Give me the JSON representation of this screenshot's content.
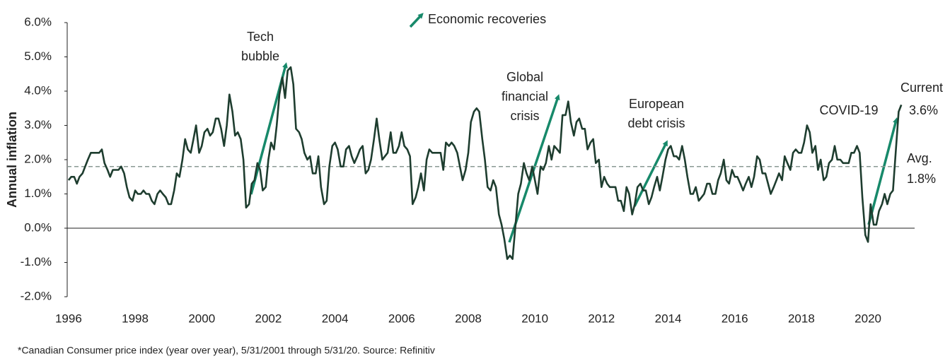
{
  "chart_data": {
    "type": "line",
    "y_label": "Annual inflation",
    "legend_label": "Economic recoveries",
    "footnote": "*Canadian Consumer price index (year over year), 5/31/2001 through 5/31/20. Source: Refinitiv",
    "color": "#1e3d2f",
    "arrow_color": "#17896a",
    "x": [
      1996.0,
      1996.08,
      1996.17,
      1996.25,
      1996.33,
      1996.42,
      1996.5,
      1996.58,
      1996.67,
      1996.75,
      1996.83,
      1996.92,
      1997.0,
      1997.08,
      1997.17,
      1997.25,
      1997.33,
      1997.42,
      1997.5,
      1997.58,
      1997.67,
      1997.75,
      1997.83,
      1997.92,
      1998.0,
      1998.08,
      1998.17,
      1998.25,
      1998.33,
      1998.42,
      1998.5,
      1998.58,
      1998.67,
      1998.75,
      1998.83,
      1998.92,
      1999.0,
      1999.08,
      1999.17,
      1999.25,
      1999.33,
      1999.42,
      1999.5,
      1999.58,
      1999.67,
      1999.75,
      1999.83,
      1999.92,
      2000.0,
      2000.08,
      2000.17,
      2000.25,
      2000.33,
      2000.42,
      2000.5,
      2000.58,
      2000.67,
      2000.75,
      2000.83,
      2000.92,
      2001.0,
      2001.08,
      2001.17,
      2001.25,
      2001.33,
      2001.42,
      2001.5,
      2001.58,
      2001.67,
      2001.75,
      2001.83,
      2001.92,
      2002.0,
      2002.08,
      2002.17,
      2002.25,
      2002.33,
      2002.42,
      2002.5,
      2002.58,
      2002.67,
      2002.75,
      2002.83,
      2002.92,
      2003.0,
      2003.08,
      2003.17,
      2003.25,
      2003.33,
      2003.42,
      2003.5,
      2003.58,
      2003.67,
      2003.75,
      2003.83,
      2003.92,
      2004.0,
      2004.08,
      2004.17,
      2004.25,
      2004.33,
      2004.42,
      2004.5,
      2004.58,
      2004.67,
      2004.75,
      2004.83,
      2004.92,
      2005.0,
      2005.08,
      2005.17,
      2005.25,
      2005.33,
      2005.42,
      2005.5,
      2005.58,
      2005.67,
      2005.75,
      2005.83,
      2005.92,
      2006.0,
      2006.08,
      2006.17,
      2006.25,
      2006.33,
      2006.42,
      2006.5,
      2006.58,
      2006.67,
      2006.75,
      2006.83,
      2006.92,
      2007.0,
      2007.08,
      2007.17,
      2007.25,
      2007.33,
      2007.42,
      2007.5,
      2007.58,
      2007.67,
      2007.75,
      2007.83,
      2007.92,
      2008.0,
      2008.08,
      2008.17,
      2008.25,
      2008.33,
      2008.42,
      2008.5,
      2008.58,
      2008.67,
      2008.75,
      2008.83,
      2008.92,
      2009.0,
      2009.08,
      2009.17,
      2009.25,
      2009.33,
      2009.42,
      2009.5,
      2009.58,
      2009.67,
      2009.75,
      2009.83,
      2009.92,
      2010.0,
      2010.08,
      2010.17,
      2010.25,
      2010.33,
      2010.42,
      2010.5,
      2010.58,
      2010.67,
      2010.75,
      2010.83,
      2010.92,
      2011.0,
      2011.08,
      2011.17,
      2011.25,
      2011.33,
      2011.42,
      2011.5,
      2011.58,
      2011.67,
      2011.75,
      2011.83,
      2011.92,
      2012.0,
      2012.08,
      2012.17,
      2012.25,
      2012.33,
      2012.42,
      2012.5,
      2012.58,
      2012.67,
      2012.75,
      2012.83,
      2012.92,
      2013.0,
      2013.08,
      2013.17,
      2013.25,
      2013.33,
      2013.42,
      2013.5,
      2013.58,
      2013.67,
      2013.75,
      2013.83,
      2013.92,
      2014.0,
      2014.08,
      2014.17,
      2014.25,
      2014.33,
      2014.42,
      2014.5,
      2014.58,
      2014.67,
      2014.75,
      2014.83,
      2014.92,
      2015.0,
      2015.08,
      2015.17,
      2015.25,
      2015.33,
      2015.42,
      2015.5,
      2015.58,
      2015.67,
      2015.75,
      2015.83,
      2015.92,
      2016.0,
      2016.08,
      2016.17,
      2016.25,
      2016.33,
      2016.42,
      2016.5,
      2016.58,
      2016.67,
      2016.75,
      2016.83,
      2016.92,
      2017.0,
      2017.08,
      2017.17,
      2017.25,
      2017.33,
      2017.42,
      2017.5,
      2017.58,
      2017.67,
      2017.75,
      2017.83,
      2017.92,
      2018.0,
      2018.08,
      2018.17,
      2018.25,
      2018.33,
      2018.42,
      2018.5,
      2018.58,
      2018.67,
      2018.75,
      2018.83,
      2018.92,
      2019.0,
      2019.08,
      2019.17,
      2019.25,
      2019.33,
      2019.42,
      2019.5,
      2019.58,
      2019.67,
      2019.75,
      2019.83,
      2019.92,
      2020.0,
      2020.08,
      2020.17,
      2020.25,
      2020.33,
      2020.42,
      2020.5,
      2020.58,
      2020.67,
      2020.75,
      2020.83,
      2020.92,
      2021.0
    ],
    "values": [
      1.4,
      1.5,
      1.5,
      1.3,
      1.5,
      1.6,
      1.8,
      2.0,
      2.2,
      2.2,
      2.2,
      2.2,
      2.3,
      1.9,
      1.7,
      1.5,
      1.7,
      1.7,
      1.7,
      1.8,
      1.6,
      1.2,
      0.9,
      0.8,
      1.1,
      1.0,
      1.0,
      1.1,
      1.0,
      1.0,
      0.8,
      0.7,
      1.0,
      1.1,
      1.0,
      0.9,
      0.7,
      0.7,
      1.1,
      1.6,
      1.5,
      2.0,
      2.6,
      2.3,
      2.2,
      2.6,
      3.0,
      2.2,
      2.4,
      2.8,
      2.9,
      2.7,
      2.8,
      3.2,
      3.2,
      2.9,
      2.4,
      3.0,
      3.9,
      3.4,
      2.7,
      2.8,
      2.6,
      2.0,
      0.6,
      0.7,
      1.3,
      1.4,
      1.9,
      1.7,
      1.1,
      1.2,
      2.0,
      2.5,
      2.3,
      3.0,
      3.9,
      4.4,
      3.8,
      4.6,
      4.7,
      4.2,
      2.9,
      2.8,
      2.6,
      2.2,
      2.0,
      2.1,
      1.6,
      1.6,
      2.1,
      1.2,
      0.7,
      0.8,
      1.8,
      2.4,
      2.5,
      2.3,
      1.8,
      1.8,
      2.3,
      2.4,
      2.1,
      1.9,
      2.1,
      2.3,
      2.4,
      1.6,
      1.7,
      2.0,
      2.6,
      3.2,
      2.6,
      2.0,
      2.1,
      2.2,
      2.8,
      2.2,
      2.2,
      2.4,
      2.8,
      2.4,
      2.3,
      2.1,
      0.7,
      0.9,
      1.2,
      1.6,
      1.1,
      2.0,
      2.3,
      2.2,
      2.2,
      2.2,
      2.2,
      1.7,
      2.5,
      2.4,
      2.5,
      2.4,
      2.2,
      1.8,
      1.4,
      1.7,
      2.2,
      3.1,
      3.4,
      3.5,
      3.4,
      2.6,
      2.0,
      1.2,
      1.1,
      1.4,
      1.2,
      0.4,
      0.1,
      -0.3,
      -0.9,
      -0.8,
      -0.9,
      0.1,
      1.0,
      1.3,
      1.9,
      1.6,
      1.4,
      1.8,
      1.4,
      1.0,
      1.8,
      1.7,
      1.9,
      2.4,
      2.0,
      2.4,
      2.3,
      2.2,
      3.3,
      3.3,
      3.7,
      3.1,
      2.7,
      3.1,
      3.2,
      2.9,
      2.9,
      2.3,
      2.5,
      2.6,
      1.9,
      2.0,
      1.2,
      1.5,
      1.3,
      1.2,
      1.2,
      1.2,
      0.8,
      0.8,
      0.5,
      1.2,
      1.0,
      0.4,
      0.7,
      1.2,
      1.3,
      1.1,
      1.1,
      0.7,
      0.9,
      1.2,
      1.5,
      1.1,
      1.5,
      2.0,
      2.3,
      2.4,
      2.1,
      2.1,
      2.0,
      2.4,
      2.0,
      1.5,
      1.0,
      1.0,
      1.2,
      0.8,
      0.9,
      1.0,
      1.3,
      1.3,
      1.0,
      1.0,
      1.4,
      1.6,
      2.0,
      1.4,
      1.3,
      1.7,
      1.5,
      1.5,
      1.3,
      1.1,
      1.3,
      1.5,
      1.2,
      1.5,
      2.1,
      2.0,
      1.6,
      1.6,
      1.3,
      1.0,
      1.2,
      1.4,
      1.6,
      1.4,
      2.1,
      1.9,
      1.7,
      2.2,
      2.3,
      2.2,
      2.2,
      2.5,
      3.0,
      2.8,
      2.2,
      2.4,
      1.7,
      2.0,
      1.4,
      1.5,
      1.9,
      2.0,
      2.4,
      2.0,
      2.0,
      1.9,
      1.9,
      1.9,
      2.2,
      2.2,
      2.4,
      2.2,
      0.9,
      -0.2,
      -0.4,
      0.7,
      0.1,
      0.1,
      0.5,
      0.7,
      1.0,
      0.7,
      1.0,
      1.1,
      2.2,
      3.4,
      3.6
    ],
    "current_label": "Current",
    "current_value_label": "3.6%",
    "average": 1.8,
    "average_label": "Avg.",
    "average_value_label": "1.8%",
    "xlim": [
      1995.96,
      2021.4
    ],
    "xticks": [
      1996,
      1998,
      2000,
      2002,
      2004,
      2006,
      2008,
      2010,
      2012,
      2014,
      2016,
      2018,
      2020
    ],
    "ylim": [
      -2,
      6
    ],
    "yticks": [
      {
        "value": -2,
        "label": "-2.0%"
      },
      {
        "value": -1,
        "label": "-1.0%"
      },
      {
        "value": 0,
        "label": "0.0%"
      },
      {
        "value": 1,
        "label": "1.0%"
      },
      {
        "value": 2,
        "label": "2.0%"
      },
      {
        "value": 3,
        "label": "3.0%"
      },
      {
        "value": 4,
        "label": "4.0%"
      },
      {
        "value": 5,
        "label": "5.0%"
      },
      {
        "value": 6,
        "label": "6.0%"
      }
    ],
    "annotations": [
      {
        "lines": [
          "Tech",
          "bubble"
        ]
      },
      {
        "lines": [
          "Global",
          "financial",
          "crisis"
        ]
      },
      {
        "lines": [
          "European",
          "debt crisis"
        ]
      },
      {
        "lines": [
          "COVID-19"
        ]
      }
    ]
  }
}
